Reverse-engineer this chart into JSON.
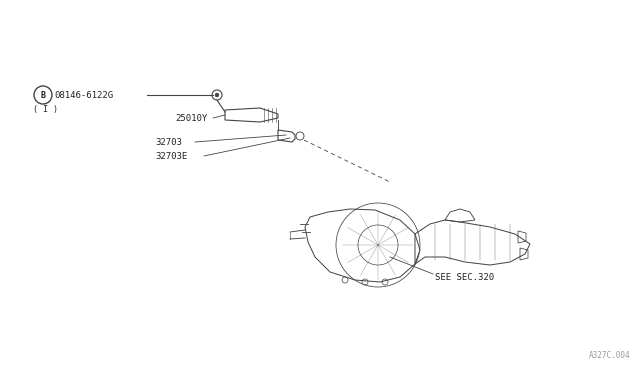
{
  "bg_color": "#ffffff",
  "line_color": "#444444",
  "text_color": "#222222",
  "fig_width": 6.4,
  "fig_height": 3.72,
  "dpi": 100,
  "watermark": "A327C.004",
  "labels": {
    "part_b": "B",
    "part_b_sub": "( I )",
    "part_08146": "08146-6122G",
    "part_25010": "25010Y",
    "part_32703": "32703",
    "part_32703e": "32703E",
    "see_sec": "SEE SEC.320"
  }
}
